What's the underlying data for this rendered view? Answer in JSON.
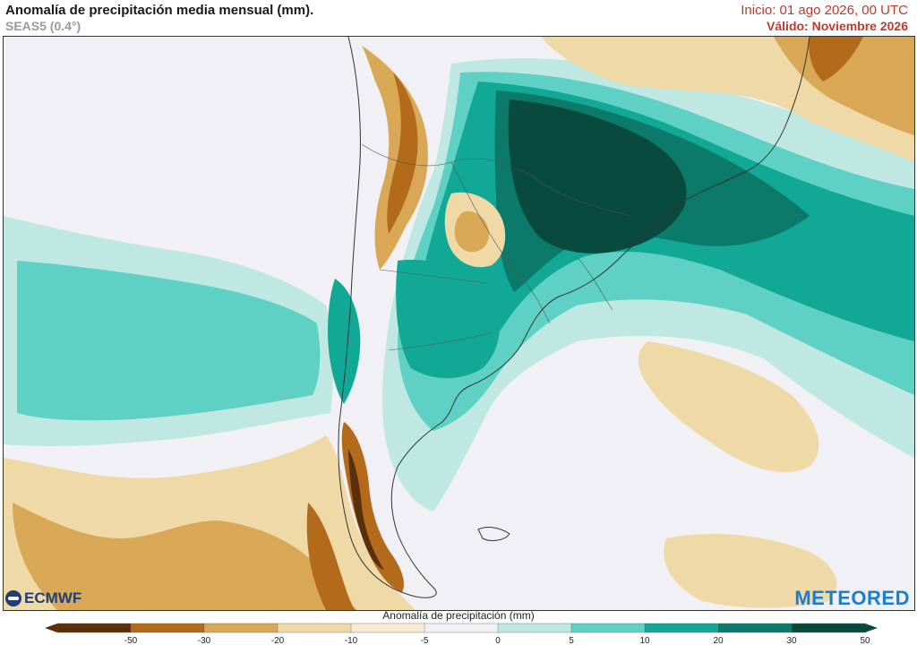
{
  "header": {
    "title": "Anomalía de precipitación media mensual (mm).",
    "subtitle": "SEAS5 (0.4°)",
    "init": "Inicio: 01 ago 2026, 00 UTC",
    "valid": "Válido: Noviembre 2026"
  },
  "logos": {
    "left": "ECMWF",
    "right": "METEORED"
  },
  "legend": {
    "title": "Anomalía de precipitación (mm)",
    "ticks": [
      "-50",
      "-30",
      "-20",
      "-10",
      "-5",
      "0",
      "5",
      "10",
      "20",
      "30",
      "50"
    ],
    "colors": [
      "#5a2f0a",
      "#b36a1a",
      "#d9a857",
      "#efd9a6",
      "#f6ecd6",
      "#f1f0f4",
      "#bfe8e2",
      "#5ed0c4",
      "#12a896",
      "#0b7a6a",
      "#084a3e"
    ]
  },
  "palette": {
    "neutral": "#f1f0f4",
    "dry_light": "#efd9a6",
    "dry_mid": "#d9a857",
    "dry_dark": "#b36a1a",
    "dry_extreme": "#5a2f0a",
    "wet_light": "#bfe8e2",
    "wet_mid": "#5ed0c4",
    "wet_strong": "#12a896",
    "wet_dark": "#0b7a6a",
    "wet_extreme": "#084a3e",
    "land_outline": "#333333"
  }
}
